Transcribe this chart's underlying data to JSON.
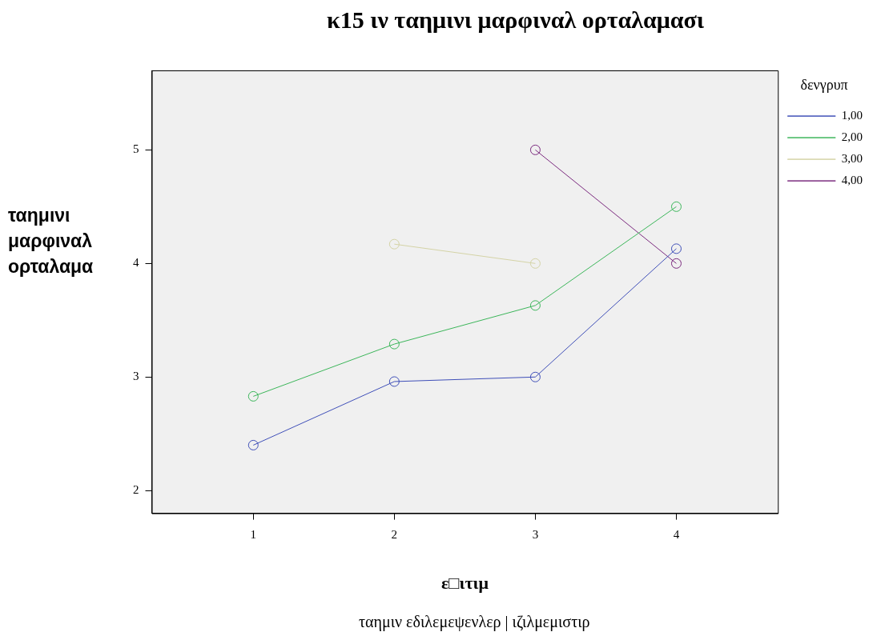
{
  "chart_data": {
    "type": "line",
    "title": "κ15 ιν ταημινι μαρφιναλ ορταλαμασι",
    "xlabel": "ε□ιτιμ",
    "ylabel": "ταημινι μαρφιναλ ορταλαμα",
    "legend_title": "δενγρυπ",
    "annotations": [
      "ταημιν εδιλεμεψενλερ | ιζιλμεμιστιρ"
    ],
    "x": [
      1,
      2,
      3,
      4
    ],
    "xlim": [
      0.28,
      4.72
    ],
    "xticks": [
      1,
      2,
      3,
      4
    ],
    "ylim": [
      1.8,
      5.7
    ],
    "yticks": [
      2,
      3,
      4,
      5
    ],
    "series": [
      {
        "name": "1,00",
        "color": "#3f4fb8",
        "values": [
          2.4,
          2.96,
          3.0,
          4.13
        ]
      },
      {
        "name": "2,00",
        "color": "#3cb65a",
        "values": [
          2.83,
          3.29,
          3.63,
          4.5
        ]
      },
      {
        "name": "3,00",
        "color": "#d4d3a6",
        "values": [
          null,
          4.17,
          4.0,
          null
        ]
      },
      {
        "name": "4,00",
        "color": "#7b2a7f",
        "values": [
          null,
          null,
          5.0,
          4.0
        ]
      }
    ],
    "marker": "circle",
    "line_style": "solid",
    "grid": false,
    "legend": "top right"
  }
}
